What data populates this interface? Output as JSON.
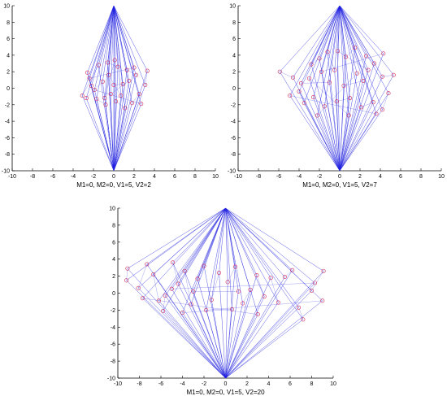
{
  "chart_data": [
    {
      "type": "line",
      "xlabel": "M1=0, M2=0, V1=5, V2=2",
      "xlim": [
        -10,
        10
      ],
      "ylim": [
        -10,
        10
      ],
      "xticks": [
        "-10",
        "-8",
        "-6",
        "-4",
        "-2",
        "0",
        "2",
        "4",
        "6",
        "8",
        "10"
      ],
      "yticks": [
        "-10",
        "-8",
        "-6",
        "-4",
        "-2",
        "0",
        "2",
        "4",
        "6",
        "8",
        "10"
      ],
      "grid": false,
      "line_color": "#1f1fe0",
      "marker_color": "#cc2255",
      "points": [
        [
          -2.6,
          1.9
        ],
        [
          -2.2,
          0.3
        ],
        [
          -3.1,
          -0.9
        ],
        [
          -1.5,
          2.8
        ],
        [
          -0.6,
          3.1
        ],
        [
          0.4,
          2.6
        ],
        [
          1.3,
          2.2
        ],
        [
          2.2,
          1.6
        ],
        [
          3.3,
          2.1
        ],
        [
          3.1,
          0.4
        ],
        [
          2.5,
          -0.7
        ],
        [
          1.8,
          -1.8
        ],
        [
          1.1,
          -2.4
        ],
        [
          0.2,
          -1.6
        ],
        [
          -0.8,
          -2.0
        ],
        [
          -1.7,
          -1.3
        ],
        [
          -2.7,
          -1.2
        ],
        [
          -1.1,
          0.8
        ],
        [
          0.0,
          0.4
        ],
        [
          0.9,
          0.5
        ],
        [
          -0.3,
          -0.7
        ],
        [
          1.5,
          0.9
        ],
        [
          -1.9,
          -0.2
        ],
        [
          2.7,
          -1.9
        ],
        [
          -0.5,
          1.6
        ],
        [
          0.7,
          -0.9
        ],
        [
          -2.4,
          1.2
        ],
        [
          2.0,
          2.5
        ],
        [
          0.1,
          3.4
        ],
        [
          -0.9,
          -1.2
        ]
      ]
    },
    {
      "type": "line",
      "xlabel": "M1=0, M2=0, V1=5, V2=7",
      "xlim": [
        -10,
        10
      ],
      "ylim": [
        -10,
        10
      ],
      "xticks": [
        "-10",
        "-8",
        "-6",
        "-4",
        "-2",
        "0",
        "2",
        "4",
        "6",
        "8",
        "10"
      ],
      "yticks": [
        "-10",
        "-8",
        "-6",
        "-4",
        "-2",
        "0",
        "2",
        "4",
        "6",
        "8",
        "10"
      ],
      "grid": false,
      "line_color": "#1f1fe0",
      "marker_color": "#cc2255",
      "points": [
        [
          -5.9,
          2.0
        ],
        [
          -4.6,
          1.3
        ],
        [
          -4.0,
          -0.4
        ],
        [
          -3.5,
          -1.8
        ],
        [
          -2.8,
          2.9
        ],
        [
          -2.0,
          3.6
        ],
        [
          -1.2,
          4.4
        ],
        [
          -0.5,
          2.2
        ],
        [
          0.6,
          3.8
        ],
        [
          1.5,
          4.9
        ],
        [
          2.6,
          3.9
        ],
        [
          3.4,
          3.0
        ],
        [
          4.2,
          1.4
        ],
        [
          5.3,
          1.6
        ],
        [
          4.8,
          -0.6
        ],
        [
          4.2,
          -2.6
        ],
        [
          3.3,
          -1.7
        ],
        [
          2.1,
          -2.3
        ],
        [
          1.0,
          -1.2
        ],
        [
          -0.3,
          -1.6
        ],
        [
          -1.5,
          -2.2
        ],
        [
          -2.6,
          -1.1
        ],
        [
          -3.8,
          0.6
        ],
        [
          -1.0,
          0.7
        ],
        [
          0.4,
          0.3
        ],
        [
          2.3,
          0.9
        ],
        [
          1.7,
          1.8
        ],
        [
          -2.2,
          -3.3
        ],
        [
          3.6,
          -3.1
        ],
        [
          -4.9,
          -0.9
        ],
        [
          0.9,
          -3.3
        ],
        [
          -3.0,
          1.2
        ],
        [
          2.8,
          2.2
        ],
        [
          -0.2,
          4.5
        ],
        [
          4.3,
          4.2
        ],
        [
          -1.8,
          2.0
        ]
      ]
    },
    {
      "type": "line",
      "xlabel": "M1=0, M2=0, V1=5, V2=20",
      "xlim": [
        -10,
        10
      ],
      "ylim": [
        -10,
        10
      ],
      "xticks": [
        "-10",
        "-8",
        "-6",
        "-4",
        "-2",
        "0",
        "2",
        "4",
        "6",
        "8",
        "10"
      ],
      "yticks": [
        "-10",
        "-8",
        "-6",
        "-4",
        "-2",
        "0",
        "2",
        "4",
        "6",
        "8",
        "10"
      ],
      "grid": false,
      "line_color": "#1f1fe0",
      "marker_color": "#cc2255",
      "points": [
        [
          -9.1,
          2.9
        ],
        [
          -9.2,
          1.5
        ],
        [
          -8.1,
          0.6
        ],
        [
          -7.3,
          3.4
        ],
        [
          -6.7,
          2.2
        ],
        [
          -6.2,
          -0.9
        ],
        [
          -5.8,
          -2.1
        ],
        [
          -5.6,
          -0.3
        ],
        [
          -4.9,
          3.6
        ],
        [
          -4.4,
          1.1
        ],
        [
          -3.8,
          2.6
        ],
        [
          -3.2,
          -1.3
        ],
        [
          -2.6,
          1.7
        ],
        [
          -2.0,
          3.2
        ],
        [
          -1.3,
          -0.8
        ],
        [
          -0.6,
          2.4
        ],
        [
          0.2,
          1.3
        ],
        [
          0.9,
          3.1
        ],
        [
          1.6,
          -1.2
        ],
        [
          2.3,
          0.4
        ],
        [
          2.9,
          2.1
        ],
        [
          3.6,
          -0.4
        ],
        [
          4.2,
          1.8
        ],
        [
          4.9,
          -1.1
        ],
        [
          5.5,
          1.9
        ],
        [
          6.2,
          2.7
        ],
        [
          6.8,
          -1.7
        ],
        [
          7.2,
          -3.1
        ],
        [
          8.0,
          0.3
        ],
        [
          9.1,
          2.6
        ],
        [
          9.0,
          -0.9
        ],
        [
          -1.8,
          -2.0
        ],
        [
          0.6,
          -1.9
        ],
        [
          -4.0,
          -2.3
        ],
        [
          3.0,
          -2.5
        ],
        [
          -7.7,
          -0.6
        ],
        [
          8.3,
          1.2
        ],
        [
          -5.0,
          0.5
        ],
        [
          1.2,
          0.2
        ],
        [
          -3.0,
          0.2
        ]
      ]
    }
  ]
}
